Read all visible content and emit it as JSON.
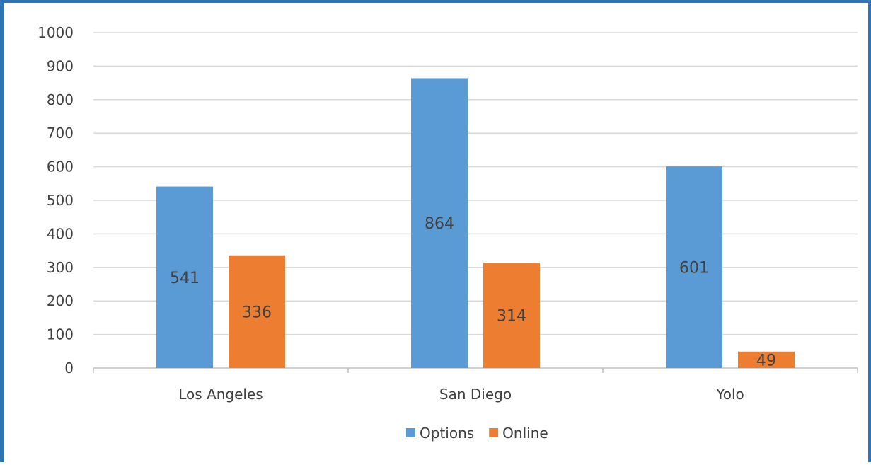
{
  "chart_data": {
    "type": "bar",
    "categories": [
      "Los Angeles",
      "San Diego",
      "Yolo"
    ],
    "series": [
      {
        "name": "Options",
        "values": [
          541,
          864,
          601
        ],
        "color": "#5b9bd5"
      },
      {
        "name": "Online",
        "values": [
          336,
          314,
          49
        ],
        "color": "#ed7d31"
      }
    ],
    "ylim": [
      0,
      1000
    ],
    "yticks": [
      0,
      100,
      200,
      300,
      400,
      500,
      600,
      700,
      800,
      900,
      1000
    ],
    "grid": true,
    "legend_position": "bottom",
    "data_labels": true
  },
  "colors": {
    "frame": "#2e75b6",
    "gridline": "#d9d9d9",
    "axis": "#bfbfbf",
    "text": "#404040"
  }
}
